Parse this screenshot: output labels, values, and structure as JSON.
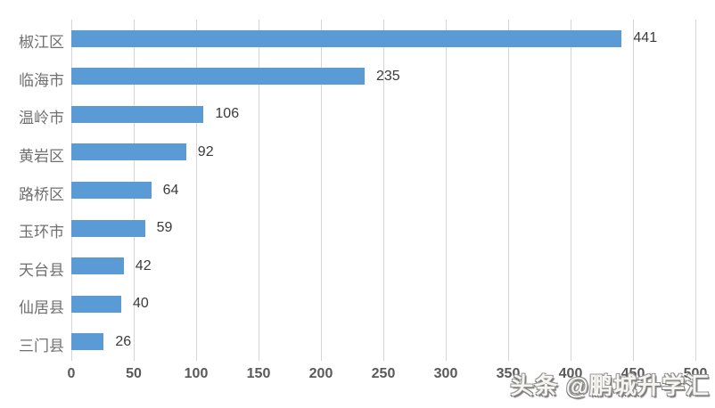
{
  "watermark": {
    "text": "头条 @鹏城升学汇"
  },
  "chart_data": {
    "type": "bar",
    "orientation": "horizontal",
    "title": "",
    "xlabel": "",
    "ylabel": "",
    "categories": [
      "椒江区",
      "临海市",
      "温岭市",
      "黄岩区",
      "路桥区",
      "玉环市",
      "天台县",
      "仙居县",
      "三门县"
    ],
    "values": [
      441,
      235,
      106,
      92,
      64,
      59,
      42,
      40,
      26
    ],
    "xlim": [
      0,
      500
    ],
    "xticks": [
      0,
      50,
      100,
      150,
      200,
      250,
      300,
      350,
      400,
      450,
      500
    ],
    "grid": true,
    "legend": false,
    "data_labels": true,
    "colors": {
      "bar": "#5b9bd5",
      "gridline": "#d6d6d6",
      "axis_tick_label": "#595959",
      "category_label": "#6f6f6f",
      "value_label": "#3b3b3b",
      "background": "#ffffff"
    }
  }
}
